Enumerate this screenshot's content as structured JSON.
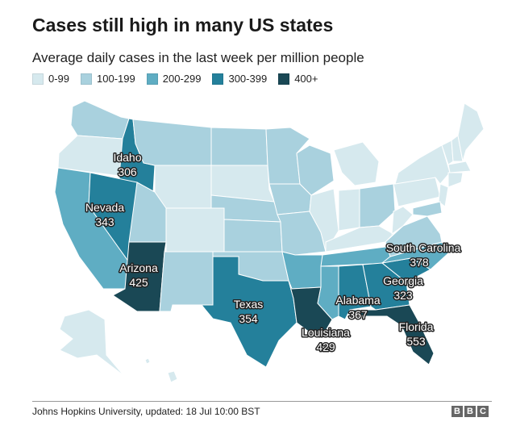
{
  "header": {
    "title": "Cases still high in many US states",
    "subtitle": "Average daily cases in the last week per million people"
  },
  "legend": [
    {
      "label": "0-99",
      "color": "#d6e9ee"
    },
    {
      "label": "100-199",
      "color": "#a9d1de"
    },
    {
      "label": "200-299",
      "color": "#5fadc3"
    },
    {
      "label": "300-399",
      "color": "#24809b"
    },
    {
      "label": "400+",
      "color": "#1a4855"
    }
  ],
  "labels": {
    "idaho": {
      "name": "Idaho",
      "value": "306"
    },
    "nevada": {
      "name": "Nevada",
      "value": "343"
    },
    "arizona": {
      "name": "Arizona",
      "value": "425"
    },
    "texas": {
      "name": "Texas",
      "value": "354"
    },
    "louisiana": {
      "name": "Louisiana",
      "value": "429"
    },
    "alabama": {
      "name": "Alabama",
      "value": "367"
    },
    "south_carolina": {
      "name": "South Carolina",
      "value": "378"
    },
    "georgia": {
      "name": "Georgia",
      "value": "323"
    },
    "florida": {
      "name": "Florida",
      "value": "553"
    }
  },
  "footer": {
    "source": "Johns Hopkins University, updated: 18 Jul 10:00 BST",
    "logo": [
      "B",
      "B",
      "C"
    ]
  }
}
